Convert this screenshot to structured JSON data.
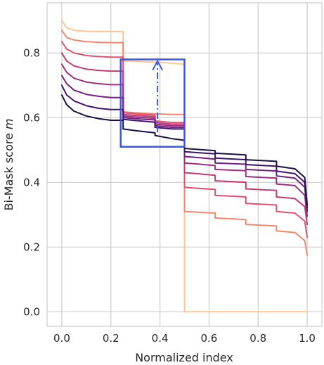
{
  "chart_data": {
    "type": "line",
    "xlabel": "Normalized index",
    "ylabel": "Bi-Mask score",
    "ylabel_symbol": "m",
    "xlim": [
      -0.06,
      1.06
    ],
    "ylim": [
      -0.045,
      0.955
    ],
    "xticks": [
      0.0,
      0.2,
      0.4,
      0.6,
      0.8,
      1.0
    ],
    "xtick_labels": [
      "0.0",
      "0.2",
      "0.4",
      "0.6",
      "0.8",
      "1.0"
    ],
    "yticks": [
      0.0,
      0.2,
      0.4,
      0.6,
      0.8
    ],
    "ytick_labels": [
      "0.0",
      "0.2",
      "0.4",
      "0.6",
      "0.8"
    ],
    "grid": true,
    "series": [
      {
        "color": "#fdc58f",
        "x": [
          0.0,
          0.02,
          0.05,
          0.1,
          0.15,
          0.2,
          0.25,
          0.25,
          0.3,
          0.4,
          0.5,
          0.5,
          1.0
        ],
        "y": [
          0.9,
          0.878,
          0.87,
          0.867,
          0.866,
          0.866,
          0.866,
          0.775,
          0.774,
          0.771,
          0.765,
          0.0,
          0.0
        ]
      },
      {
        "color": "#f4866c",
        "x": [
          0.0,
          0.02,
          0.05,
          0.1,
          0.15,
          0.2,
          0.25,
          0.25,
          0.3,
          0.38,
          0.38,
          0.45,
          0.5,
          0.5,
          0.55,
          0.625,
          0.625,
          0.75,
          0.75,
          0.875,
          0.875,
          0.95,
          0.99,
          1.0
        ],
        "y": [
          0.87,
          0.848,
          0.84,
          0.835,
          0.833,
          0.832,
          0.832,
          0.618,
          0.615,
          0.612,
          0.612,
          0.61,
          0.61,
          0.31,
          0.308,
          0.305,
          0.29,
          0.285,
          0.27,
          0.265,
          0.25,
          0.245,
          0.22,
          0.175
        ]
      },
      {
        "color": "#e34f6f",
        "x": [
          0.0,
          0.02,
          0.05,
          0.1,
          0.15,
          0.2,
          0.25,
          0.25,
          0.3,
          0.38,
          0.38,
          0.45,
          0.5,
          0.5,
          0.55,
          0.625,
          0.625,
          0.75,
          0.75,
          0.875,
          0.875,
          0.95,
          0.99,
          1.0
        ],
        "y": [
          0.835,
          0.812,
          0.8,
          0.792,
          0.789,
          0.787,
          0.787,
          0.615,
          0.612,
          0.608,
          0.59,
          0.585,
          0.585,
          0.385,
          0.382,
          0.378,
          0.36,
          0.355,
          0.335,
          0.33,
          0.31,
          0.305,
          0.28,
          0.23
        ]
      },
      {
        "color": "#c13b76",
        "x": [
          0.0,
          0.02,
          0.05,
          0.1,
          0.15,
          0.2,
          0.25,
          0.25,
          0.3,
          0.38,
          0.38,
          0.45,
          0.5,
          0.5,
          0.55,
          0.625,
          0.625,
          0.75,
          0.75,
          0.875,
          0.875,
          0.95,
          0.99,
          1.0
        ],
        "y": [
          0.8,
          0.775,
          0.76,
          0.75,
          0.746,
          0.744,
          0.744,
          0.61,
          0.607,
          0.603,
          0.585,
          0.58,
          0.58,
          0.43,
          0.427,
          0.422,
          0.405,
          0.4,
          0.38,
          0.375,
          0.355,
          0.35,
          0.325,
          0.27
        ]
      },
      {
        "color": "#9c2e7f",
        "x": [
          0.0,
          0.02,
          0.05,
          0.1,
          0.15,
          0.2,
          0.25,
          0.25,
          0.3,
          0.38,
          0.38,
          0.45,
          0.5,
          0.5,
          0.55,
          0.625,
          0.625,
          0.75,
          0.75,
          0.875,
          0.875,
          0.95,
          0.99,
          1.0
        ],
        "y": [
          0.765,
          0.74,
          0.722,
          0.71,
          0.705,
          0.702,
          0.702,
          0.605,
          0.602,
          0.598,
          0.58,
          0.575,
          0.575,
          0.46,
          0.457,
          0.452,
          0.44,
          0.436,
          0.418,
          0.413,
          0.395,
          0.39,
          0.36,
          0.295
        ]
      },
      {
        "color": "#711f81",
        "x": [
          0.0,
          0.02,
          0.05,
          0.1,
          0.15,
          0.2,
          0.25,
          0.25,
          0.3,
          0.38,
          0.38,
          0.45,
          0.5,
          0.5,
          0.55,
          0.625,
          0.625,
          0.75,
          0.75,
          0.875,
          0.875,
          0.95,
          0.99,
          1.0
        ],
        "y": [
          0.73,
          0.705,
          0.685,
          0.672,
          0.666,
          0.662,
          0.662,
          0.6,
          0.597,
          0.593,
          0.575,
          0.57,
          0.57,
          0.48,
          0.477,
          0.472,
          0.46,
          0.456,
          0.44,
          0.435,
          0.42,
          0.413,
          0.385,
          0.31
        ]
      },
      {
        "color": "#3e136e",
        "x": [
          0.0,
          0.02,
          0.05,
          0.1,
          0.15,
          0.2,
          0.25,
          0.25,
          0.3,
          0.38,
          0.38,
          0.45,
          0.5,
          0.5,
          0.55,
          0.625,
          0.625,
          0.75,
          0.75,
          0.875,
          0.875,
          0.95,
          0.99,
          1.0
        ],
        "y": [
          0.7,
          0.67,
          0.652,
          0.637,
          0.629,
          0.625,
          0.625,
          0.595,
          0.591,
          0.586,
          0.57,
          0.565,
          0.565,
          0.495,
          0.492,
          0.488,
          0.475,
          0.47,
          0.455,
          0.45,
          0.435,
          0.427,
          0.4,
          0.32
        ]
      },
      {
        "color": "#1a1042",
        "x": [
          0.0,
          0.02,
          0.05,
          0.1,
          0.15,
          0.2,
          0.25,
          0.25,
          0.3,
          0.38,
          0.38,
          0.45,
          0.5,
          0.5,
          0.55,
          0.625,
          0.625,
          0.75,
          0.75,
          0.875,
          0.875,
          0.95,
          0.99,
          1.0
        ],
        "y": [
          0.67,
          0.64,
          0.62,
          0.605,
          0.597,
          0.592,
          0.592,
          0.565,
          0.56,
          0.553,
          0.545,
          0.535,
          0.53,
          0.505,
          0.502,
          0.498,
          0.49,
          0.485,
          0.47,
          0.465,
          0.45,
          0.442,
          0.415,
          0.33
        ]
      }
    ],
    "annotations": {
      "box": {
        "x0": 0.24,
        "x1": 0.5,
        "y0": 0.51,
        "y1": 0.78,
        "color": "#3a55e3"
      },
      "arrow": {
        "x": 0.39,
        "y_from": 0.555,
        "y_to": 0.775,
        "color": "#3a55e3",
        "style": "dash-dot"
      }
    }
  }
}
